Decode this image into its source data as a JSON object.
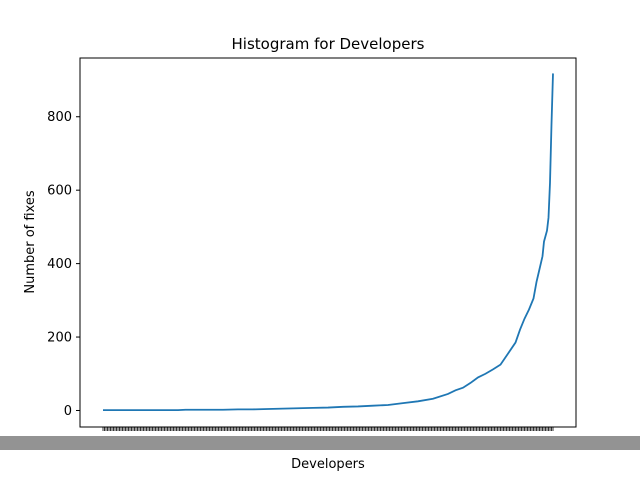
{
  "chart_data": {
    "type": "line",
    "title": "Histogram for Developers",
    "xlabel": "Developers",
    "ylabel": "Number of fixes",
    "color": "#1f77b4",
    "ylim": [
      -45,
      960
    ],
    "yticks": [
      0,
      200,
      400,
      600,
      800
    ],
    "x_count": 300,
    "curve_points": [
      [
        0,
        1
      ],
      [
        50,
        1
      ],
      [
        55,
        2
      ],
      [
        80,
        2
      ],
      [
        90,
        3
      ],
      [
        100,
        3
      ],
      [
        110,
        4
      ],
      [
        120,
        5
      ],
      [
        130,
        6
      ],
      [
        140,
        7
      ],
      [
        150,
        8
      ],
      [
        160,
        10
      ],
      [
        170,
        11
      ],
      [
        180,
        13
      ],
      [
        190,
        15
      ],
      [
        200,
        20
      ],
      [
        210,
        25
      ],
      [
        220,
        32
      ],
      [
        230,
        45
      ],
      [
        235,
        55
      ],
      [
        240,
        62
      ],
      [
        245,
        75
      ],
      [
        250,
        90
      ],
      [
        255,
        100
      ],
      [
        260,
        112
      ],
      [
        265,
        125
      ],
      [
        270,
        155
      ],
      [
        275,
        185
      ],
      [
        278,
        220
      ],
      [
        281,
        250
      ],
      [
        284,
        275
      ],
      [
        287,
        305
      ],
      [
        289,
        350
      ],
      [
        291,
        385
      ],
      [
        293,
        420
      ],
      [
        294,
        460
      ],
      [
        296,
        490
      ],
      [
        297,
        525
      ],
      [
        298,
        620
      ],
      [
        299,
        780
      ],
      [
        300,
        918
      ]
    ]
  }
}
